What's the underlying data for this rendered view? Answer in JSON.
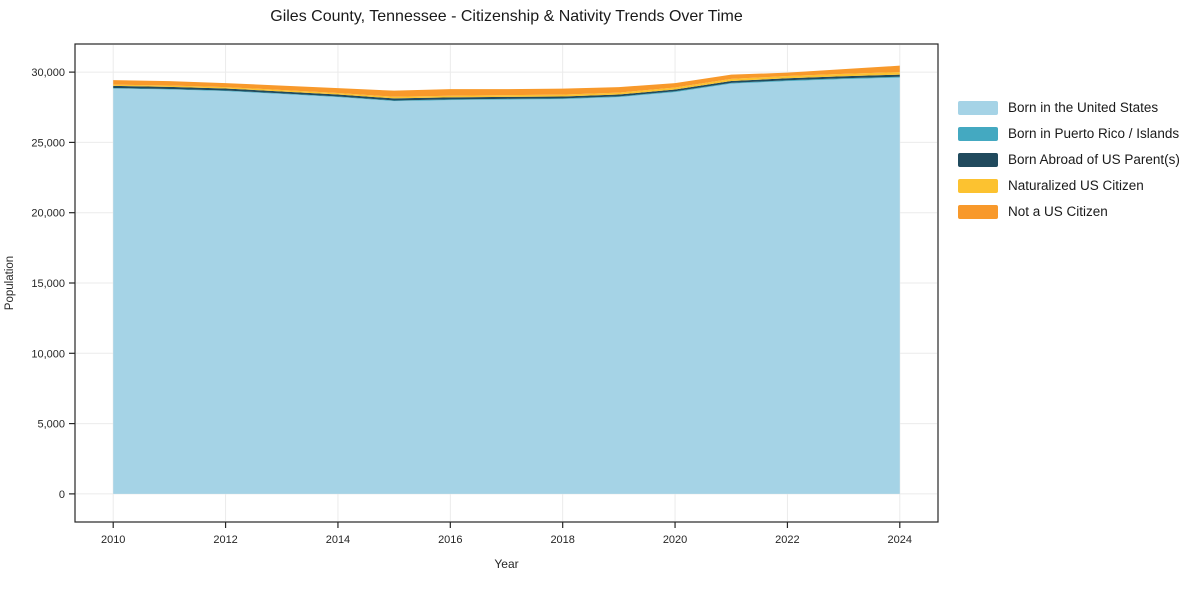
{
  "chart_data": {
    "type": "area",
    "stacked": true,
    "title": "Giles County, Tennessee - Citizenship & Nativity Trends Over Time",
    "xlabel": "Year",
    "ylabel": "Population",
    "grid": true,
    "legend_position": "right-outside",
    "background": "#ffffff",
    "frame_color": "#262626",
    "grid_color": "#ebebeb",
    "tick_label_color": "#262626",
    "x": [
      2010,
      2011,
      2012,
      2013,
      2014,
      2015,
      2016,
      2017,
      2018,
      2019,
      2020,
      2021,
      2022,
      2023,
      2024
    ],
    "series": [
      {
        "name": "Born in the United States",
        "color": "#a5d3e6",
        "values": [
          28830,
          28760,
          28650,
          28440,
          28220,
          27940,
          28010,
          28050,
          28080,
          28220,
          28580,
          29180,
          29360,
          29500,
          29610
        ]
      },
      {
        "name": "Born in Puerto Rico / Islands",
        "color": "#44a9c1",
        "values": [
          40,
          40,
          40,
          45,
          45,
          45,
          50,
          50,
          50,
          55,
          55,
          55,
          60,
          60,
          60
        ]
      },
      {
        "name": "Born Abroad of US Parent(s)",
        "color": "#204a5d",
        "values": [
          150,
          150,
          145,
          140,
          140,
          145,
          140,
          135,
          135,
          130,
          130,
          135,
          140,
          145,
          150
        ]
      },
      {
        "name": "Naturalized US Citizen",
        "color": "#fcc230",
        "values": [
          90,
          95,
          100,
          105,
          110,
          115,
          120,
          125,
          130,
          140,
          145,
          150,
          160,
          170,
          180
        ]
      },
      {
        "name": "Not a US Citizen",
        "color": "#f8992b",
        "values": [
          320,
          315,
          285,
          310,
          345,
          435,
          470,
          430,
          435,
          385,
          310,
          300,
          240,
          335,
          460
        ]
      }
    ],
    "x_ticks": {
      "values": [
        2010,
        2012,
        2014,
        2016,
        2018,
        2020,
        2022,
        2024
      ],
      "labels": [
        "2010",
        "2012",
        "2014",
        "2016",
        "2018",
        "2020",
        "2022",
        "2024"
      ]
    },
    "y_ticks": {
      "values": [
        0,
        5000,
        10000,
        15000,
        20000,
        25000,
        30000
      ],
      "labels": [
        "0",
        "5,000",
        "10,000",
        "15,000",
        "20,000",
        "25,000",
        "30,000"
      ]
    },
    "xlim": [
      2009.32,
      2024.68
    ],
    "ylim": [
      -2000,
      32000
    ]
  }
}
